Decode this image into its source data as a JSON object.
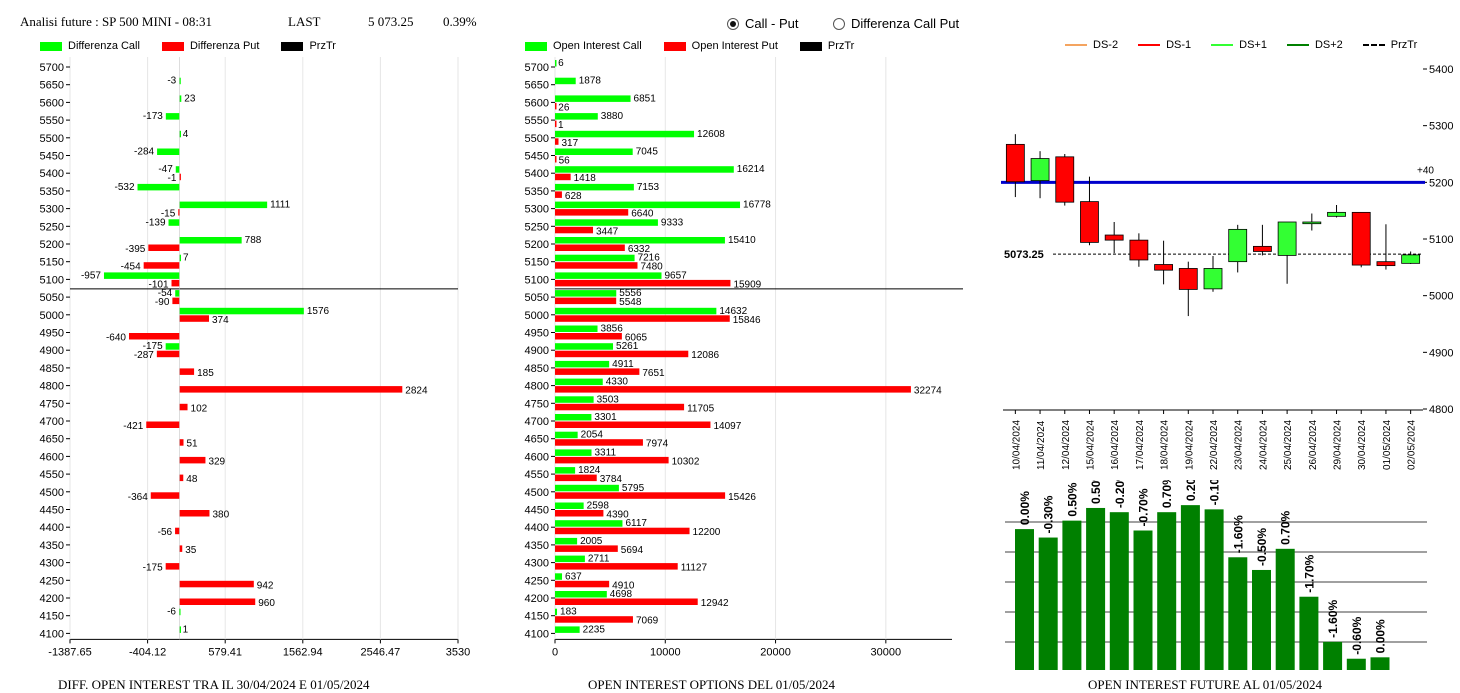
{
  "header": {
    "title": "Analisi future : SP 500 MINI - 08:31",
    "last_label": "LAST",
    "last_value": "5 073.25",
    "last_pct": "0.39%"
  },
  "radio": {
    "call_put": "Call - Put",
    "diff_call_put": "Differenza Call Put",
    "selected": "call_put"
  },
  "colors": {
    "call": "#00ff00",
    "put": "#ff0000",
    "price_line": "#0000cc",
    "bar_green": "#008000",
    "ds_m2": "#f4a460",
    "ds_m1": "#ff0000",
    "ds_p1": "#33ff33",
    "ds_p2": "#008000"
  },
  "captions": {
    "diff": "DIFF. OPEN INTEREST TRA IL 30/04/2024 E 01/05/2024",
    "oi": "OPEN INTEREST OPTIONS DEL 01/05/2024",
    "future": "OPEN INTEREST FUTURE AL 01/05/2024"
  },
  "chart_data": [
    {
      "id": "diff",
      "type": "bar",
      "legend": [
        "Differenza Call",
        "Differenza Put",
        "PrzTr"
      ],
      "strikes": [
        5700,
        5650,
        5600,
        5550,
        5500,
        5450,
        5400,
        5350,
        5300,
        5250,
        5200,
        5150,
        5100,
        5050,
        5000,
        4950,
        4900,
        4850,
        4800,
        4750,
        4700,
        4650,
        4600,
        4550,
        4500,
        4450,
        4400,
        4350,
        4300,
        4250,
        4200,
        4150,
        4100
      ],
      "call": [
        null,
        -3,
        23,
        -173,
        4,
        -284,
        -47,
        -532,
        1111,
        -139,
        788,
        7,
        -957,
        -54,
        1576,
        null,
        -175,
        null,
        null,
        null,
        null,
        null,
        null,
        null,
        null,
        null,
        null,
        null,
        null,
        null,
        null,
        -6,
        1
      ],
      "put": [
        null,
        null,
        null,
        null,
        null,
        null,
        -1,
        null,
        -15,
        null,
        -395,
        -454,
        -101,
        -90,
        374,
        -640,
        -287,
        185,
        2824,
        102,
        -421,
        51,
        329,
        48,
        -364,
        380,
        -56,
        35,
        -175,
        942,
        960,
        null,
        null
      ],
      "xticks": [
        "-1387.65",
        "-404.12",
        "579.41",
        "1562.94",
        "2546.47",
        "3530"
      ],
      "xrange": [
        -1387.65,
        3530
      ],
      "price_line": 5073.25
    },
    {
      "id": "oi",
      "type": "bar",
      "legend": [
        "Open Interest Call",
        "Open Interest Put",
        "PrzTr"
      ],
      "strikes": [
        5700,
        5650,
        5600,
        5550,
        5500,
        5450,
        5400,
        5350,
        5300,
        5250,
        5200,
        5150,
        5100,
        5050,
        5000,
        4950,
        4900,
        4850,
        4800,
        4750,
        4700,
        4650,
        4600,
        4550,
        4500,
        4450,
        4400,
        4350,
        4300,
        4250,
        4200,
        4150,
        4100
      ],
      "call": [
        6,
        1878,
        6851,
        3880,
        12608,
        7045,
        16214,
        7153,
        16778,
        9333,
        15410,
        7216,
        9657,
        5556,
        14632,
        3856,
        5261,
        4911,
        4330,
        3503,
        3301,
        2054,
        3311,
        1824,
        5795,
        2598,
        6117,
        2005,
        2711,
        637,
        4698,
        183,
        2235
      ],
      "put": [
        null,
        null,
        26,
        1,
        317,
        56,
        1418,
        628,
        6640,
        3447,
        6332,
        7480,
        15909,
        5548,
        15846,
        6065,
        12086,
        7651,
        32274,
        11705,
        14097,
        7974,
        10302,
        3784,
        15426,
        4390,
        12200,
        5694,
        11127,
        4910,
        12942,
        7069,
        null
      ],
      "xticks": [
        "0",
        "10000",
        "20000",
        "30000"
      ],
      "xrange": [
        0,
        36000
      ],
      "price_line": 5073.25
    },
    {
      "id": "candles",
      "type": "candlestick",
      "legend": [
        "DS-2",
        "DS-1",
        "DS+1",
        "DS+2",
        "PrzTr"
      ],
      "dates": [
        "10/04/2024",
        "11/04/2024",
        "12/04/2024",
        "15/04/2024",
        "16/04/2024",
        "17/04/2024",
        "18/04/2024",
        "19/04/2024",
        "22/04/2024",
        "23/04/2024",
        "24/04/2024",
        "25/04/2024",
        "26/04/2024",
        "29/04/2024",
        "30/04/2024",
        "01/05/2024",
        "02/05/2024"
      ],
      "open": [
        5267,
        5203,
        5245,
        5166,
        5107,
        5098,
        5055,
        5048,
        5012,
        5060,
        5087,
        5071,
        5127,
        5140,
        5147,
        5060,
        5057
      ],
      "high": [
        5285,
        5255,
        5250,
        5210,
        5130,
        5110,
        5097,
        5060,
        5070,
        5125,
        5125,
        5125,
        5145,
        5160,
        5147,
        5126,
        5078
      ],
      "low": [
        5174,
        5172,
        5159,
        5089,
        5075,
        5051,
        5020,
        4964,
        5007,
        5041,
        5071,
        5021,
        5115,
        5138,
        5050,
        5046,
        5056
      ],
      "close": [
        5201,
        5242,
        5165,
        5094,
        5098,
        5063,
        5045,
        5011,
        5048,
        5117,
        5078,
        5130,
        5130,
        5147,
        5054,
        5053,
        5072
      ],
      "yticks": [
        5400,
        5300,
        5200,
        5100,
        5000,
        4900,
        4800
      ],
      "yrange": [
        4800,
        5400
      ],
      "blue_line": 5200,
      "blue_label": "+40",
      "last_price": 5073.25,
      "last_label": "5073.25"
    },
    {
      "id": "future_oi",
      "type": "bar",
      "labels": [
        "0.00%",
        "-0.30%",
        "0.50%",
        "0.50%",
        "-0.20%",
        "-0.70%",
        "0.70%",
        "0.20%",
        "-0.10%",
        "-1.60%",
        "-0.50%",
        "0.70%",
        "-1.70%",
        "-1.60%",
        "-0.60%",
        "0.00%"
      ],
      "values": [
        100,
        94,
        106,
        115,
        112,
        99,
        112,
        117,
        114,
        80,
        71,
        86,
        52,
        20,
        8,
        9
      ],
      "vmax": 132
    }
  ]
}
